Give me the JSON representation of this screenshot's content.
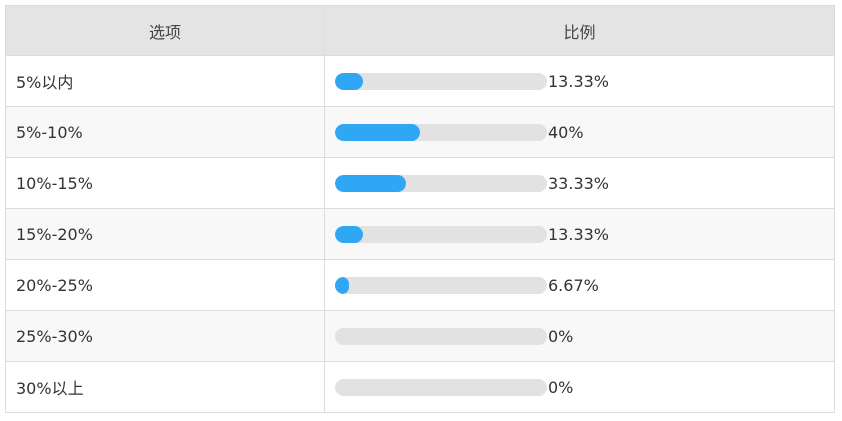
{
  "table": {
    "header": [
      "选项",
      "比例"
    ],
    "rows": [
      {
        "option": "5%以内",
        "value": 13.33,
        "label": "13.33%"
      },
      {
        "option": "5%-10%",
        "value": 40,
        "label": "40%"
      },
      {
        "option": "10%-15%",
        "value": 33.33,
        "label": "33.33%"
      },
      {
        "option": "15%-20%",
        "value": 13.33,
        "label": "13.33%"
      },
      {
        "option": "20%-25%",
        "value": 6.67,
        "label": "6.67%"
      },
      {
        "option": "25%-30%",
        "value": 0,
        "label": "0%"
      },
      {
        "option": "30%以上",
        "value": 0,
        "label": "0%"
      }
    ]
  }
}
